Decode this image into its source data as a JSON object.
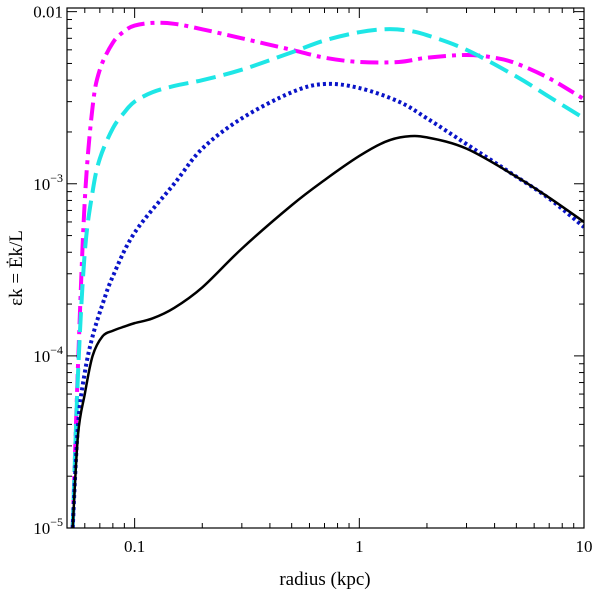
{
  "chart_data": {
    "type": "line",
    "title": "",
    "xlabel": "radius (kpc)",
    "ylabel": "εk = Ėk/L",
    "xscale": "log",
    "yscale": "log",
    "xlim": [
      0.05,
      10
    ],
    "ylim": [
      1e-05,
      0.0105
    ],
    "xticks": [
      {
        "value": 0.1,
        "label": "0.1"
      },
      {
        "value": 1,
        "label": "1"
      },
      {
        "value": 10,
        "label": "10"
      }
    ],
    "yticks": [
      {
        "value": 1e-05,
        "label": "10",
        "exp": "−5"
      },
      {
        "value": 0.0001,
        "label": "10",
        "exp": "−4"
      },
      {
        "value": 0.001,
        "label": "10",
        "exp": "−3"
      },
      {
        "value": 0.01,
        "label": "0.01",
        "exp": ""
      }
    ],
    "grid": false,
    "legend": "none",
    "series": [
      {
        "style": "solid",
        "color": "#000000",
        "points": [
          [
            0.053,
            1e-05
          ],
          [
            0.056,
            3.5e-05
          ],
          [
            0.06,
            6e-05
          ],
          [
            0.065,
            0.0001
          ],
          [
            0.072,
            0.00013
          ],
          [
            0.08,
            0.00014
          ],
          [
            0.09,
            0.000148
          ],
          [
            0.1,
            0.000155
          ],
          [
            0.12,
            0.000165
          ],
          [
            0.15,
            0.00019
          ],
          [
            0.2,
            0.00025
          ],
          [
            0.3,
            0.00042
          ],
          [
            0.5,
            0.00075
          ],
          [
            0.7,
            0.00105
          ],
          [
            1.0,
            0.00145
          ],
          [
            1.3,
            0.00175
          ],
          [
            1.6,
            0.00188
          ],
          [
            2.0,
            0.00186
          ],
          [
            3.0,
            0.0016
          ],
          [
            5.0,
            0.0011
          ],
          [
            7.0,
            0.00083
          ],
          [
            10.0,
            0.0006
          ]
        ]
      },
      {
        "style": "dotted",
        "color": "#0a14c8",
        "points": [
          [
            0.053,
            1e-05
          ],
          [
            0.056,
            4e-05
          ],
          [
            0.06,
            8e-05
          ],
          [
            0.065,
            0.00013
          ],
          [
            0.072,
            0.0002
          ],
          [
            0.08,
            0.00029
          ],
          [
            0.1,
            0.00052
          ],
          [
            0.15,
            0.001
          ],
          [
            0.2,
            0.0016
          ],
          [
            0.3,
            0.0024
          ],
          [
            0.5,
            0.0034
          ],
          [
            0.7,
            0.0038
          ],
          [
            1.0,
            0.0036
          ],
          [
            1.5,
            0.003
          ],
          [
            2.0,
            0.0024
          ],
          [
            3.0,
            0.0017
          ],
          [
            5.0,
            0.0011
          ],
          [
            7.0,
            0.00082
          ],
          [
            10.0,
            0.00056
          ]
        ]
      },
      {
        "style": "dashed",
        "color": "#1ee6e6",
        "points": [
          [
            0.053,
            1e-05
          ],
          [
            0.056,
            8e-05
          ],
          [
            0.06,
            0.0004
          ],
          [
            0.065,
            0.0009
          ],
          [
            0.07,
            0.0014
          ],
          [
            0.08,
            0.0021
          ],
          [
            0.09,
            0.0026
          ],
          [
            0.1,
            0.003
          ],
          [
            0.12,
            0.0034
          ],
          [
            0.15,
            0.0037
          ],
          [
            0.2,
            0.004
          ],
          [
            0.3,
            0.0046
          ],
          [
            0.5,
            0.0058
          ],
          [
            0.7,
            0.0068
          ],
          [
            1.0,
            0.0076
          ],
          [
            1.3,
            0.0079
          ],
          [
            1.6,
            0.0078
          ],
          [
            2.0,
            0.0073
          ],
          [
            3.0,
            0.006
          ],
          [
            5.0,
            0.0042
          ],
          [
            7.0,
            0.0032
          ],
          [
            10.0,
            0.0024
          ]
        ]
      },
      {
        "style": "dashdot",
        "color": "#ff00ff",
        "points": [
          [
            0.053,
            1e-05
          ],
          [
            0.056,
            9e-05
          ],
          [
            0.06,
            0.0008
          ],
          [
            0.065,
            0.0028
          ],
          [
            0.07,
            0.0046
          ],
          [
            0.08,
            0.0066
          ],
          [
            0.09,
            0.0077
          ],
          [
            0.1,
            0.0083
          ],
          [
            0.12,
            0.0086
          ],
          [
            0.15,
            0.0085
          ],
          [
            0.2,
            0.0079
          ],
          [
            0.3,
            0.007
          ],
          [
            0.5,
            0.006
          ],
          [
            0.7,
            0.0054
          ],
          [
            1.0,
            0.0051
          ],
          [
            1.5,
            0.0051
          ],
          [
            2.0,
            0.0054
          ],
          [
            3.0,
            0.0056
          ],
          [
            4.0,
            0.0054
          ],
          [
            5.0,
            0.005
          ],
          [
            7.0,
            0.0041
          ],
          [
            10.0,
            0.0031
          ]
        ]
      }
    ]
  }
}
